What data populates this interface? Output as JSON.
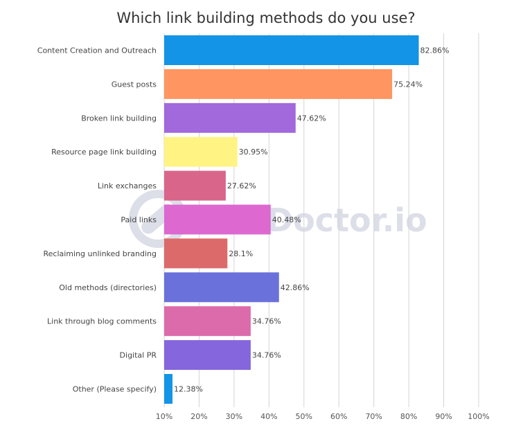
{
  "chart_data": {
    "type": "bar",
    "orientation": "horizontal",
    "title": "Which link building methods do you use?",
    "categories": [
      "Content Creation and Outreach",
      "Guest posts",
      "Broken link building",
      "Resource page link building",
      "Link exchanges",
      "Paid links",
      "Reclaiming unlinked branding",
      "Old methods (directories)",
      "Link through blog comments",
      "Digital PR",
      "Other (Please specify)"
    ],
    "values": [
      82.86,
      75.24,
      47.62,
      30.95,
      27.62,
      40.48,
      28.1,
      42.86,
      34.76,
      34.76,
      12.38
    ],
    "value_labels": [
      "82.86%",
      "75.24%",
      "47.62%",
      "30.95%",
      "27.62%",
      "40.48%",
      "28.1%",
      "42.86%",
      "34.76%",
      "34.76%",
      "12.38%"
    ],
    "colors": [
      "#1394e6",
      "#ff9561",
      "#a169dc",
      "#fff384",
      "#d9668a",
      "#dc68d0",
      "#dc6a6a",
      "#6a71db",
      "#dc6bab",
      "#8566dc",
      "#1394e6"
    ],
    "xlim": [
      10,
      100
    ],
    "xticks": [
      10,
      20,
      30,
      40,
      50,
      60,
      70,
      80,
      90,
      100
    ],
    "xtick_labels": [
      "10%",
      "20%",
      "30%",
      "40%",
      "50%",
      "60%",
      "70%",
      "80%",
      "90%",
      "100%"
    ],
    "grid": true,
    "xlabel": "",
    "ylabel": ""
  },
  "watermark": {
    "text": "Doctor.io",
    "icon": "link-icon"
  }
}
